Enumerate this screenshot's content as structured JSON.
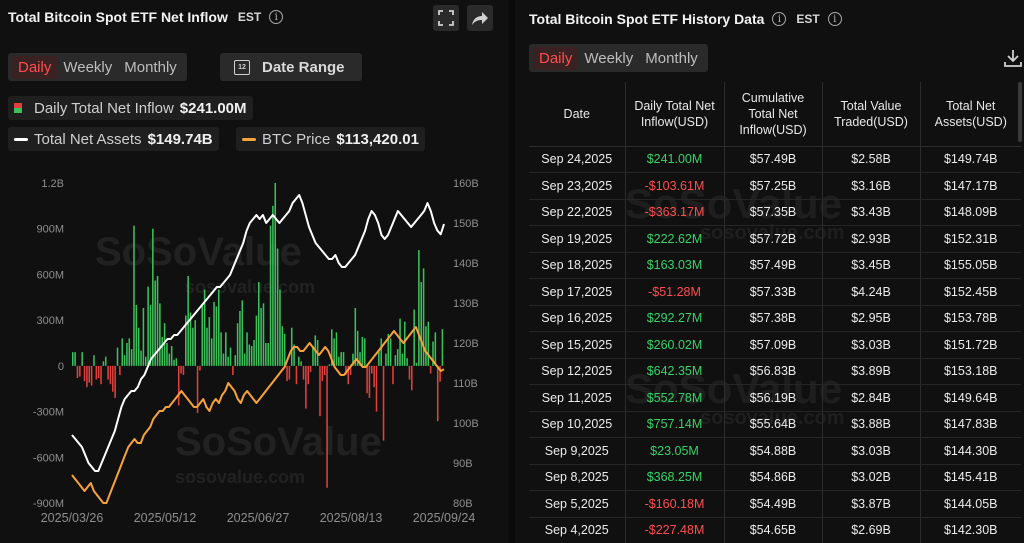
{
  "left_panel": {
    "title": "Total Bitcoin Spot ETF Net Inflow",
    "timezone": "EST",
    "period_tabs": [
      "Daily",
      "Weekly",
      "Monthly"
    ],
    "active_tab": "Daily",
    "date_range_label": "Date Range",
    "calendar_icon_text": "12",
    "legend": {
      "inflow_label": "Daily Total Net Inflow",
      "inflow_value": "$241.00M",
      "assets_label": "Total Net Assets",
      "assets_value": "$149.74B",
      "btc_label": "BTC Price",
      "btc_value": "$113,420.01"
    },
    "watermark": "SoSoValue",
    "watermark_url": "sosovalue.com"
  },
  "right_panel": {
    "title": "Total Bitcoin Spot ETF History Data",
    "timezone": "EST",
    "period_tabs": [
      "Daily",
      "Weekly",
      "Monthly"
    ],
    "active_tab": "Daily",
    "columns": [
      "Date",
      "Daily Total Net Inflow(USD)",
      "Cumulative Total Net Inflow(USD)",
      "Total Value Traded(USD)",
      "Total Net Assets(USD)"
    ],
    "rows": [
      {
        "date": "Sep 24,2025",
        "inflow": "$241.00M",
        "sign": "pos",
        "cum": "$57.49B",
        "traded": "$2.58B",
        "assets": "$149.74B"
      },
      {
        "date": "Sep 23,2025",
        "inflow": "-$103.61M",
        "sign": "neg",
        "cum": "$57.25B",
        "traded": "$3.16B",
        "assets": "$147.17B"
      },
      {
        "date": "Sep 22,2025",
        "inflow": "-$363.17M",
        "sign": "neg",
        "cum": "$57.35B",
        "traded": "$3.43B",
        "assets": "$148.09B"
      },
      {
        "date": "Sep 19,2025",
        "inflow": "$222.62M",
        "sign": "pos",
        "cum": "$57.72B",
        "traded": "$2.93B",
        "assets": "$152.31B"
      },
      {
        "date": "Sep 18,2025",
        "inflow": "$163.03M",
        "sign": "pos",
        "cum": "$57.49B",
        "traded": "$3.45B",
        "assets": "$155.05B"
      },
      {
        "date": "Sep 17,2025",
        "inflow": "-$51.28M",
        "sign": "neg",
        "cum": "$57.33B",
        "traded": "$4.24B",
        "assets": "$152.45B"
      },
      {
        "date": "Sep 16,2025",
        "inflow": "$292.27M",
        "sign": "pos",
        "cum": "$57.38B",
        "traded": "$2.95B",
        "assets": "$153.78B"
      },
      {
        "date": "Sep 15,2025",
        "inflow": "$260.02M",
        "sign": "pos",
        "cum": "$57.09B",
        "traded": "$3.03B",
        "assets": "$151.72B"
      },
      {
        "date": "Sep 12,2025",
        "inflow": "$642.35M",
        "sign": "pos",
        "cum": "$56.83B",
        "traded": "$3.89B",
        "assets": "$153.18B"
      },
      {
        "date": "Sep 11,2025",
        "inflow": "$552.78M",
        "sign": "pos",
        "cum": "$56.19B",
        "traded": "$2.84B",
        "assets": "$149.64B"
      },
      {
        "date": "Sep 10,2025",
        "inflow": "$757.14M",
        "sign": "pos",
        "cum": "$55.64B",
        "traded": "$3.88B",
        "assets": "$147.83B"
      },
      {
        "date": "Sep 9,2025",
        "inflow": "$23.05M",
        "sign": "pos",
        "cum": "$54.88B",
        "traded": "$3.03B",
        "assets": "$144.30B"
      },
      {
        "date": "Sep 8,2025",
        "inflow": "$368.25M",
        "sign": "pos",
        "cum": "$54.86B",
        "traded": "$3.02B",
        "assets": "$145.41B"
      },
      {
        "date": "Sep 5,2025",
        "inflow": "-$160.18M",
        "sign": "neg",
        "cum": "$54.49B",
        "traded": "$3.87B",
        "assets": "$144.05B"
      },
      {
        "date": "Sep 4,2025",
        "inflow": "-$227.48M",
        "sign": "neg",
        "cum": "$54.65B",
        "traded": "$2.69B",
        "assets": "$142.30B"
      }
    ]
  },
  "colors": {
    "positive": "#38d16a",
    "negative": "#ff4d4f",
    "assets_line": "#ffffff",
    "btc_line": "#f7a23a",
    "bar_pos": "#3cbf5a",
    "bar_neg": "#e0403e"
  },
  "chart_data": {
    "type": "bar",
    "title": "Total Bitcoin Spot ETF Net Inflow",
    "x_ticks": [
      "2025/03/26",
      "2025/05/12",
      "2025/06/27",
      "2025/08/13",
      "2025/09/24"
    ],
    "y_left_ticks": [
      "1.2B",
      "900M",
      "600M",
      "300M",
      "0",
      "-300M",
      "-600M",
      "-900M"
    ],
    "y_right_ticks": [
      "160B",
      "150B",
      "140B",
      "130B",
      "120B",
      "110B",
      "100B",
      "90B",
      "80B"
    ],
    "y_left_range": [
      -900,
      1200
    ],
    "y_right_range": [
      80,
      160
    ],
    "x_range": [
      "2025/03/26",
      "2025/09/24"
    ],
    "grid": false,
    "series": [
      {
        "name": "Daily Total Net Inflow",
        "kind": "bar",
        "axis": "left",
        "unit": "M USD",
        "values": [
          90,
          90,
          -80,
          -70,
          90,
          -100,
          -140,
          -110,
          -130,
          70,
          -90,
          -80,
          -120,
          30,
          60,
          -90,
          -120,
          -170,
          -210,
          120,
          -60,
          180,
          70,
          150,
          180,
          110,
          920,
          400,
          250,
          100,
          380,
          60,
          520,
          400,
          900,
          560,
          590,
          410,
          190,
          280,
          150,
          80,
          130,
          40,
          50,
          -260,
          -50,
          -60,
          330,
          590,
          350,
          250,
          300,
          -310,
          -30,
          400,
          500,
          250,
          320,
          180,
          420,
          390,
          500,
          220,
          80,
          220,
          60,
          120,
          -60,
          70,
          280,
          360,
          430,
          80,
          220,
          140,
          130,
          170,
          330,
          550,
          380,
          410,
          150,
          150,
          920,
          1050,
          1200,
          770,
          500,
          260,
          210,
          -100,
          -90,
          250,
          140,
          -120,
          60,
          30,
          -90,
          -280,
          -120,
          -40,
          130,
          200,
          170,
          -330,
          -100,
          -60,
          -800,
          10,
          240,
          180,
          220,
          60,
          90,
          90,
          -60,
          -120,
          -60,
          80,
          380,
          230,
          90,
          190,
          180,
          -180,
          -210,
          -50,
          -140,
          -300,
          100,
          180,
          -490,
          80,
          210,
          180,
          -120,
          70,
          110,
          310,
          80,
          290,
          50,
          -90,
          -160,
          370,
          20,
          760,
          550,
          640,
          260,
          290,
          -50,
          160,
          220,
          -363,
          -104,
          241
        ]
      },
      {
        "name": "Total Net Assets",
        "kind": "line",
        "axis": "right",
        "unit": "B USD",
        "values": [
          97,
          96,
          95,
          94,
          92,
          90,
          89,
          88,
          88,
          90,
          92,
          94,
          96,
          98,
          101,
          104,
          106,
          107,
          108,
          108,
          109,
          111,
          112,
          114,
          116,
          117,
          118,
          119,
          120,
          121,
          121,
          122,
          122,
          123,
          124,
          125,
          126,
          127,
          128,
          129,
          130,
          131,
          132,
          133,
          134,
          134,
          135,
          136,
          137,
          139,
          141,
          143,
          145,
          148,
          150,
          151,
          152,
          151,
          152,
          150,
          151,
          152,
          151,
          150,
          151,
          152,
          153,
          155,
          156,
          157,
          155,
          152,
          149,
          147,
          145,
          144,
          143,
          142,
          141,
          141,
          142,
          140,
          139,
          139,
          140,
          141,
          142,
          144,
          146,
          148,
          151,
          153,
          152,
          150,
          147,
          146,
          147,
          149,
          151,
          153,
          152,
          151,
          150,
          149,
          150,
          151,
          152,
          153,
          155,
          153,
          150,
          148.1,
          147.17,
          149.74
        ]
      },
      {
        "name": "BTC Price",
        "kind": "line",
        "axis": "right",
        "unit": "K USD",
        "values": [
          87,
          86,
          85,
          84,
          83,
          84,
          85,
          83,
          82,
          81,
          80,
          80,
          82,
          84,
          86,
          88,
          90,
          92,
          94,
          95,
          96,
          95,
          95,
          97,
          98,
          99,
          101,
          102,
          103,
          103,
          104,
          104,
          105,
          106,
          107,
          108,
          107,
          106,
          105,
          104,
          104,
          105,
          106,
          104,
          103,
          105,
          106,
          105,
          107,
          108,
          110,
          109,
          108,
          106,
          105,
          107,
          108,
          107,
          106,
          105,
          106,
          107,
          108,
          109,
          110,
          111,
          112,
          113,
          114,
          116,
          118,
          119,
          119,
          118,
          118,
          119,
          120,
          119,
          118,
          117,
          118,
          119,
          118,
          116,
          114,
          113,
          112,
          112,
          113,
          114,
          115,
          116,
          115,
          114,
          114,
          115,
          116,
          117,
          118,
          119,
          120,
          121,
          122,
          123,
          122,
          121,
          120,
          121,
          122,
          123,
          124,
          122,
          120,
          118,
          117,
          116,
          115,
          114,
          113,
          113.42
        ]
      }
    ]
  }
}
